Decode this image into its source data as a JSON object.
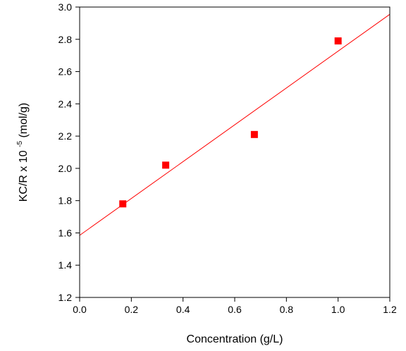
{
  "chart_data": {
    "type": "scatter",
    "xlabel": "Concentration (g/L)",
    "ylabel": {
      "prefix": "KC/R x 10",
      "exponent": "-5",
      "suffix": "(mol/g)"
    },
    "xlim": [
      0.0,
      1.2
    ],
    "ylim": [
      1.2,
      3.0
    ],
    "x_ticks": [
      "0.0",
      "0.2",
      "0.4",
      "0.6",
      "0.8",
      "1.0",
      "1.2"
    ],
    "y_ticks": [
      "1.2",
      "1.4",
      "1.6",
      "1.8",
      "2.0",
      "2.2",
      "2.4",
      "2.6",
      "2.8",
      "3.0"
    ],
    "grid": false,
    "series": [
      {
        "marker": "square",
        "color": "#ff0000",
        "x": [
          0.167,
          0.333,
          0.676,
          1.0
        ],
        "y": [
          1.78,
          2.02,
          2.21,
          2.79
        ]
      }
    ],
    "fit_line": {
      "color": "#ff0000",
      "x": [
        0.0,
        1.2
      ],
      "y": [
        1.585,
        2.955
      ]
    }
  }
}
